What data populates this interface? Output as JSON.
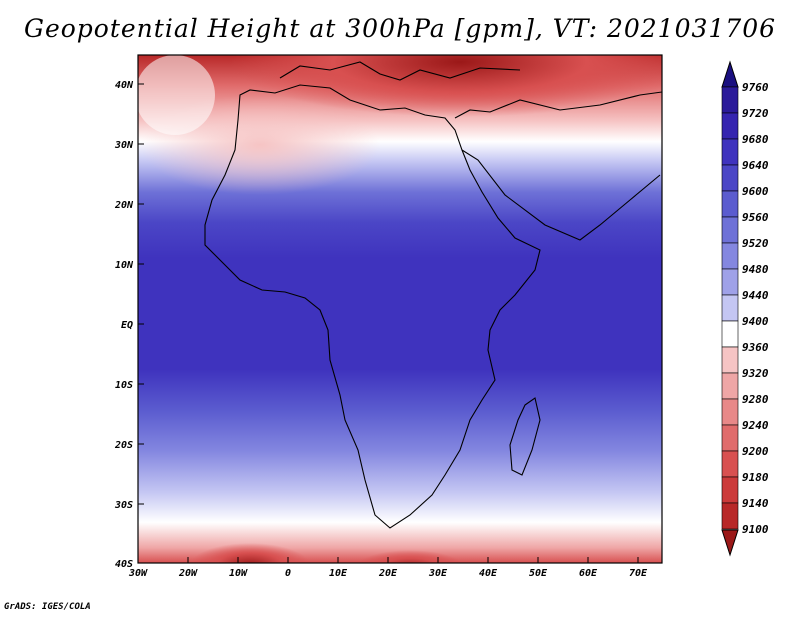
{
  "title": "Geopotential Height at 300hPa [gpm], VT: 2021031706",
  "credit": "GrADS: IGES/COLA",
  "map": {
    "lat_labels": [
      "40N",
      "30N",
      "20N",
      "10N",
      "EQ",
      "10S",
      "20S",
      "30S",
      "40S"
    ],
    "lon_labels": [
      "30W",
      "20W",
      "10W",
      "0",
      "10E",
      "20E",
      "30E",
      "40E",
      "50E",
      "60E",
      "70E"
    ],
    "lat_range": [
      -40,
      45
    ],
    "lon_range": [
      -30,
      75
    ]
  },
  "colorbar": {
    "levels": [
      9760,
      9720,
      9680,
      9640,
      9600,
      9560,
      9520,
      9480,
      9440,
      9400,
      9360,
      9320,
      9280,
      9240,
      9200,
      9180,
      9140,
      9100
    ],
    "colors": {
      "top_arrow": "#1a0f80",
      "bottom_arrow": "#9b1818",
      "bands": [
        "#2b1a9a",
        "#3524b0",
        "#3f33be",
        "#4b46c6",
        "#5b5ccf",
        "#6e71d7",
        "#8487e0",
        "#9fa1e8",
        "#c4c6f3",
        "#ffffff",
        "#f6c4c4",
        "#efa6a6",
        "#e88888",
        "#e06b6b",
        "#d85050",
        "#cc3a3a",
        "#b82828"
      ]
    }
  }
}
